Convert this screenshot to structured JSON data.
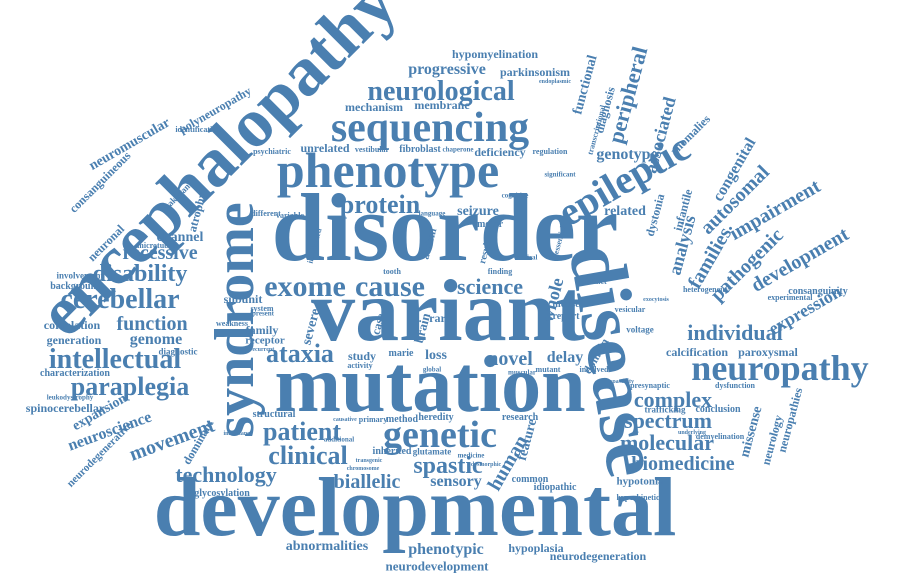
{
  "words": {
    "encephalopathy": "encephalopathy",
    "disorder": "disorder",
    "variant": "variant",
    "mutation": "mutation",
    "developmental": "developmental",
    "disease": "disease",
    "syndrome": "syndrome",
    "phenotype": "phenotype",
    "sequencing": "sequencing",
    "epileptic": "epileptic",
    "neurological": "neurological",
    "neuropathy": "neuropathy",
    "genetic": "genetic",
    "exome": "exome",
    "cause": "cause",
    "protein": "protein",
    "intellectual": "intellectual",
    "paraplegia": "paraplegia",
    "cerebellar": "cerebellar",
    "disability": "disability",
    "recessive": "recessive",
    "function": "function",
    "ataxia": "ataxia",
    "patient": "patient",
    "clinical": "clinical",
    "spastic": "spastic",
    "technology": "technology",
    "movement": "movement",
    "biallelic": "biallelic",
    "sensory": "sensory",
    "human": "human",
    "complex": "complex",
    "spectrum": "spectrum",
    "molecular": "molecular",
    "biomedicine": "biomedicine",
    "individual": "individual",
    "development": "development",
    "expression": "expression",
    "pathogenic": "pathogenic",
    "autosomal": "autosomal",
    "impairment": "impairment",
    "families": "families",
    "analysis": "analysis",
    "congenital": "congenital",
    "genotype": "genotype",
    "associated": "associated",
    "peripheral": "peripheral",
    "diagnosis": "diagnosis",
    "functional": "functional",
    "progressive": "progressive",
    "parkinsonism": "parkinsonism",
    "hypomyelination": "hypomyelination",
    "mechanism": "mechanism",
    "membrane": "membrane",
    "neuromuscular": "neuromuscular",
    "polyneuropathy": "polyneuropathy",
    "consanguineous": "consanguineous",
    "neuronal": "neuronal",
    "channel": "channel",
    "atrophy": "atrophy",
    "genome": "genome",
    "correlation": "correlation",
    "generation": "generation",
    "expansion": "expansion",
    "neuroscience": "neuroscience",
    "spinocerebellar": "spinocerebellar",
    "neurodegenerative": "neurodegenerative",
    "dominant": "dominant",
    "abnormalities": "abnormalities",
    "phenotypic": "phenotypic",
    "hypoplasia": "hypoplasia",
    "neurodegeneration": "neurodegeneration",
    "neurodevelopment": "neurodevelopment",
    "science": "science",
    "novel": "novel",
    "whole": "whole",
    "seizure": "seizure",
    "related": "related",
    "dystonia": "dystonia",
    "infantile": "infantile",
    "deficiency": "deficiency",
    "unrelated": "unrelated",
    "fibroblast": "fibroblast",
    "delay": "delay",
    "domain": "domain",
    "calcification": "calcification",
    "paroxysmal": "paroxysmal",
    "family": "family",
    "receptor": "receptor",
    "subunit": "subunit",
    "loss": "loss",
    "study": "study",
    "heredity": "heredity",
    "feature": "feature",
    "missense": "missense",
    "neurology": "neurology",
    "neuropathies": "neuropathies",
    "mouse": "mouse",
    "report": "report",
    "motor": "motor",
    "autism": "autism",
    "severe": "severe",
    "case": "case",
    "rare": "rare",
    "brain": "brain",
    "hypotonia": "hypotonia",
    "idiopathic": "idiopathic",
    "common": "common",
    "conclusion": "conclusion",
    "consanguinity": "consanguinity",
    "heterogeneity": "heterogeneity",
    "anomalies": "anomalies",
    "identification": "identification",
    "pakistani": "pakistani",
    "background": "background",
    "involvement": "involvement",
    "characterization": "characterization",
    "structural": "structural",
    "method": "method",
    "research": "research",
    "inherited": "inherited",
    "glutamate": "glutamate",
    "glycosylation": "glycosylation",
    "trafficking": "trafficking",
    "experimental": "experimental",
    "vesicular": "vesicular",
    "voltage": "voltage",
    "hyperkinetic": "hyperkinetic",
    "demyelination": "demyelination",
    "dysfunction": "dysfunction",
    "presynaptic": "presynaptic",
    "psychiatric": "psychiatric",
    "vestibular": "vestibular",
    "chaperone": "chaperone",
    "regulation": "regulation",
    "transcriptional": "transcriptional",
    "variable": "variable",
    "different": "different",
    "activity": "activity",
    "diagnostic": "diagnostic",
    "leukodystrophy": "leukodystrophy",
    "weakness": "weakness",
    "primary": "primary",
    "additional": "additional",
    "medicine": "medicine",
    "distinct": "distinct",
    "significant": "significant",
    "finding": "finding",
    "essential": "essential",
    "mutant": "mutant",
    "involved": "involved",
    "spasticity": "spasticity",
    "exocytosis": "exocytosis",
    "microtubule": "microtubule",
    "system": "system",
    "present": "present",
    "tooth": "tooth",
    "implicated": "implicated",
    "marie": "marie",
    "cognitive": "cognitive",
    "endoplasmic": "endoplasmic",
    "underlying": "underlying",
    "inheritance": "inheritance",
    "recurrent": "recurrent",
    "causative": "causative",
    "chromosome": "chromosome",
    "transgenic": "transgenic",
    "dysmorphic": "dysmorphic",
    "global": "global",
    "muscular": "muscular",
    "result": "result",
    "critical": "critical",
    "language": "language"
  }
}
